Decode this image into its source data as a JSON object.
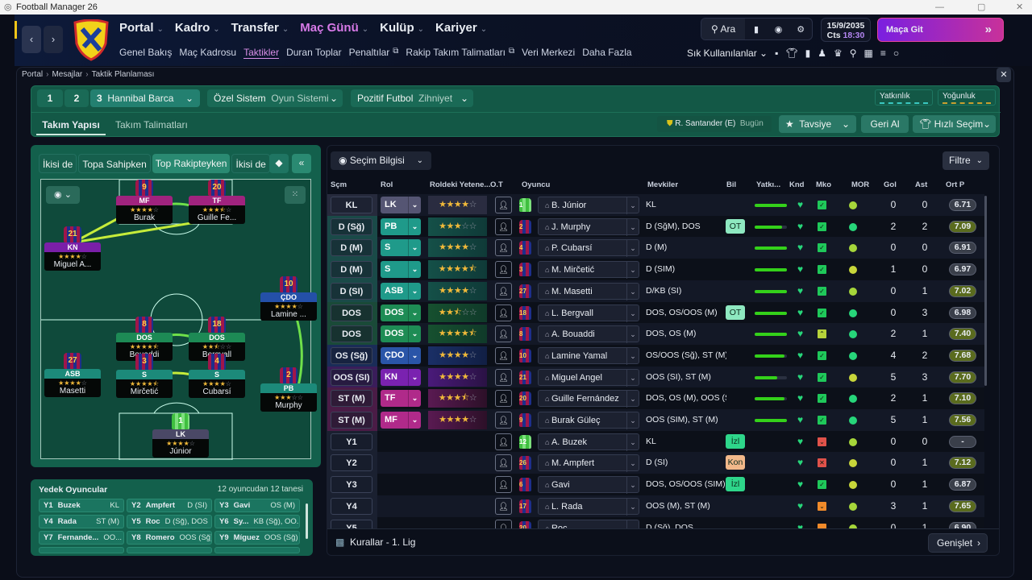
{
  "window": {
    "title": "Football Manager 26"
  },
  "header": {
    "main_menu": [
      "Portal",
      "Kadro",
      "Transfer",
      "Maç Günü",
      "Kulüp",
      "Kariyer"
    ],
    "active_main": "Maç Günü",
    "sub_menu": [
      "Genel Bakış",
      "Maç Kadrosu",
      "Taktikler",
      "Duran Toplar",
      "Penaltılar",
      "Rakip Takım Talimatları",
      "Veri Merkezi",
      "Daha Fazla"
    ],
    "active_sub": "Taktikler",
    "search_label": "Ara",
    "date": "15/9/2035",
    "day": "Cts",
    "time": "18:30",
    "go_match": "Maça Git",
    "favorites": "Sık Kullanılanlar",
    "accent": "#c93dd8"
  },
  "breadcrumb": [
    "Portal",
    "Mesajlar",
    "Taktik Planlaması"
  ],
  "tactic": {
    "slots": [
      "1",
      "2",
      "3"
    ],
    "active_tactic": "Hannibal Barca",
    "system_value": "Özel Sistem",
    "system_label": "Oyun Sistemi",
    "mentality_value": "Pozitif Futbol",
    "mentality_label": "Zihniyet",
    "meter1": "Yatkınlık",
    "meter2": "Yoğunluk",
    "tabs": [
      "Takım Yapısı",
      "Takım Talimatları"
    ],
    "assistant": "R. Santander (E)",
    "assistant_when": "Bugün",
    "advice": "Tavsiye",
    "undo": "Geri Al",
    "quick_pick": "Hızlı Seçim"
  },
  "phase_tabs": [
    "İkisi de",
    "Topa Sahipken",
    "Top Rakipteyken",
    "İkisi de"
  ],
  "active_phase": "Top Rakipteyken",
  "pitch_players": [
    {
      "role": "MF",
      "num": "9",
      "rating": 4,
      "name": "Burak",
      "color": "#a0237e"
    },
    {
      "role": "TF",
      "num": "20",
      "rating": 3.5,
      "name": "Guille Fe...",
      "color": "#a0237e"
    },
    {
      "role": "KN",
      "num": "21",
      "rating": 4,
      "name": "Miguel A...",
      "color": "#7a1fa8"
    },
    {
      "role": "ÇDO",
      "num": "10",
      "rating": 4,
      "name": "Lamine ...",
      "color": "#2450a8"
    },
    {
      "role": "DOS",
      "num": "8",
      "rating": 4.5,
      "name": "Bouaddi",
      "color": "#1d8a55"
    },
    {
      "role": "DOS",
      "num": "18",
      "rating": 2.5,
      "name": "Bergvall",
      "color": "#1d8a55"
    },
    {
      "role": "ASB",
      "num": "27",
      "rating": 4,
      "name": "Masetti",
      "color": "#1c8a7a"
    },
    {
      "role": "S",
      "num": "3",
      "rating": 4.5,
      "name": "Mirčetić",
      "color": "#1c8a7a"
    },
    {
      "role": "S",
      "num": "4",
      "rating": 4,
      "name": "Cubarsí",
      "color": "#1c8a7a"
    },
    {
      "role": "PB",
      "num": "2",
      "rating": 3,
      "name": "Murphy",
      "color": "#1c8a7a"
    },
    {
      "role": "LK",
      "num": "1",
      "rating": 4,
      "name": "Júnior",
      "color": "#4a4866"
    }
  ],
  "subs": {
    "title": "Yedek Oyuncular",
    "count": "12 oyuncudan 12 tanesi",
    "items": [
      {
        "slot": "Y1",
        "name": "Buzek",
        "pos": "KL"
      },
      {
        "slot": "Y2",
        "name": "Ampfert",
        "pos": "D (SI)"
      },
      {
        "slot": "Y3",
        "name": "Gavi",
        "pos": "OS (M)"
      },
      {
        "slot": "Y4",
        "name": "Rada",
        "pos": "ST (M)"
      },
      {
        "slot": "Y5",
        "name": "Roc",
        "pos": "D (Sğ), DOS"
      },
      {
        "slot": "Y6",
        "name": "Sy...",
        "pos": "KB (Sğ), OO..."
      },
      {
        "slot": "Y7",
        "name": "Fernande...",
        "pos": "OO..."
      },
      {
        "slot": "Y8",
        "name": "Romero",
        "pos": "OOS (Sğ)"
      },
      {
        "slot": "Y9",
        "name": "Míguez",
        "pos": "OOS (Sğ)"
      }
    ]
  },
  "table": {
    "view_label": "Seçim Bilgisi",
    "filter_label": "Filtre",
    "columns": [
      "Sçm",
      "Rol",
      "Roldeki Yetene...",
      "O.T",
      "Oyuncu",
      "Mevkiler",
      "Bil",
      "Yatkı...",
      "Knd",
      "Mko",
      "MOR",
      "Gol",
      "Ast",
      "Ort P"
    ],
    "rows": [
      {
        "scm": "KL",
        "rol": "LK",
        "grp": "gk",
        "rating": 4,
        "kit": "1",
        "gk": true,
        "player": "B. Júnior",
        "pos": "KL",
        "bil": "",
        "yat": 1,
        "mko": "ok",
        "mor": "#a6d63a",
        "gol": "0",
        "ast": "0",
        "ortp": "6.71"
      },
      {
        "scm": "D (Sğ)",
        "rol": "PB",
        "grp": "def",
        "rating": 3,
        "kit": "2",
        "player": "J. Murphy",
        "pos": "D (SğM), DOS",
        "bil": "OT",
        "yat": 0.85,
        "mko": "ok",
        "mor": "#27d67a",
        "gol": "2",
        "ast": "2",
        "ortp": "7.09"
      },
      {
        "scm": "D (M)",
        "rol": "S",
        "grp": "def",
        "rating": 4,
        "kit": "4",
        "player": "P. Cubarsí",
        "pos": "D (M)",
        "bil": "",
        "yat": 1,
        "mko": "ok",
        "mor": "#a6d63a",
        "gol": "0",
        "ast": "0",
        "ortp": "6.91"
      },
      {
        "scm": "D (M)",
        "rol": "S",
        "grp": "def",
        "rating": 4.5,
        "kit": "3",
        "player": "M. Mirčetić",
        "pos": "D (SIM)",
        "bil": "",
        "yat": 1,
        "mko": "ok",
        "mor": "#c8d63a",
        "gol": "1",
        "ast": "0",
        "ortp": "6.97"
      },
      {
        "scm": "D (SI)",
        "rol": "ASB",
        "grp": "def",
        "rating": 4,
        "kit": "27",
        "player": "M. Masetti",
        "pos": "D/KB (SI)",
        "bil": "",
        "yat": 1,
        "mko": "ok",
        "mor": "#a6d63a",
        "gol": "0",
        "ast": "1",
        "ortp": "7.02"
      },
      {
        "scm": "DOS",
        "rol": "DOS",
        "grp": "dm",
        "rating": 2.5,
        "kit": "18",
        "player": "L. Bergvall",
        "pos": "DOS, OS/OOS (M)",
        "bil": "OT",
        "yat": 1,
        "mko": "ok",
        "mor": "#27d67a",
        "gol": "0",
        "ast": "3",
        "ortp": "6.98"
      },
      {
        "scm": "DOS",
        "rol": "DOS",
        "grp": "dm",
        "rating": 4.5,
        "kit": "8",
        "player": "A. Bouaddi",
        "pos": "DOS, OS (M)",
        "bil": "",
        "yat": 1,
        "mko": "up",
        "mor": "#27d67a",
        "gol": "2",
        "ast": "1",
        "ortp": "7.40"
      },
      {
        "scm": "OS (Sğ)",
        "rol": "ÇDO",
        "grp": "am",
        "rating": 4,
        "kit": "10",
        "player": "Lamine Yamal",
        "pos": "OS/OOS (Sğ), ST (M)",
        "bil": "",
        "yat": 0.92,
        "mko": "ok",
        "mor": "#27d67a",
        "gol": "4",
        "ast": "2",
        "ortp": "7.68"
      },
      {
        "scm": "OOS (SI)",
        "rol": "KN",
        "grp": "att",
        "rating": 4,
        "kit": "21",
        "player": "Miguel Angel",
        "pos": "OOS (SI), ST (M)",
        "bil": "",
        "yat": 0.7,
        "mko": "ok",
        "mor": "#c8d63a",
        "gol": "5",
        "ast": "3",
        "ortp": "7.70"
      },
      {
        "scm": "ST (M)",
        "rol": "TF",
        "grp": "st",
        "rating": 3.5,
        "kit": "20",
        "player": "Guille Fernández",
        "pos": "DOS, OS (M), OOS (S...",
        "bil": "",
        "yat": 0.92,
        "mko": "ok",
        "mor": "#27d67a",
        "gol": "2",
        "ast": "1",
        "ortp": "7.10"
      },
      {
        "scm": "ST (M)",
        "rol": "MF",
        "grp": "st",
        "rating": 4,
        "kit": "9",
        "player": "Burak Güleç",
        "pos": "OOS (SIM), ST (M)",
        "bil": "",
        "yat": 1,
        "mko": "ok",
        "mor": "#27d67a",
        "gol": "5",
        "ast": "1",
        "ortp": "7.56"
      },
      {
        "scm": "Y1",
        "rol": "",
        "grp": "sub",
        "kit": "12",
        "gk": true,
        "player": "A. Buzek",
        "pos": "KL",
        "bil": "İzl",
        "mko": "down",
        "mor": "#a6d63a",
        "gol": "0",
        "ast": "0",
        "ortp": "-"
      },
      {
        "scm": "Y2",
        "rol": "",
        "grp": "sub",
        "kit": "26",
        "player": "M. Ampfert",
        "pos": "D (SI)",
        "bil": "Kon",
        "mko": "x",
        "mor": "#c8d63a",
        "gol": "0",
        "ast": "1",
        "ortp": "7.12"
      },
      {
        "scm": "Y3",
        "rol": "",
        "grp": "sub",
        "kit": "6",
        "player": "Gavi",
        "pos": "DOS, OS/OOS (SIM)",
        "bil": "İzl",
        "mko": "ok",
        "mor": "#c8d63a",
        "gol": "0",
        "ast": "1",
        "ortp": "6.87"
      },
      {
        "scm": "Y4",
        "rol": "",
        "grp": "sub",
        "kit": "17",
        "player": "L. Rada",
        "pos": "OOS (M), ST (M)",
        "bil": "",
        "mko": "warn",
        "mor": "#a6d63a",
        "gol": "3",
        "ast": "1",
        "ortp": "7.65"
      },
      {
        "scm": "Y5",
        "rol": "",
        "grp": "sub",
        "kit": "20",
        "player": "Roc",
        "pos": "D (Sğ), DOS",
        "bil": "",
        "mko": "warn",
        "mor": "#a6d63a",
        "gol": "0",
        "ast": "1",
        "ortp": "6.90"
      }
    ],
    "footer_rules": "Kurallar - 1. Lig",
    "expand": "Genişlet"
  }
}
